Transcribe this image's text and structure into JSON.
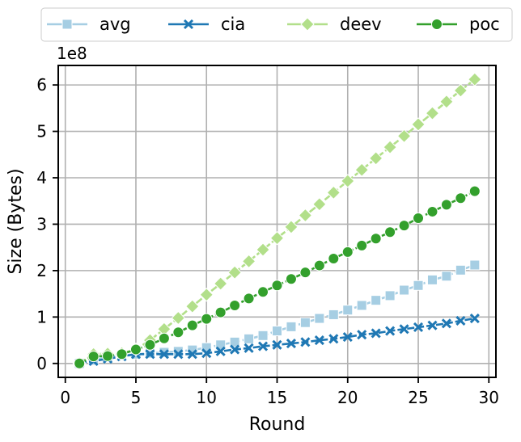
{
  "chart_data": {
    "type": "line",
    "xlabel": "Round",
    "ylabel": "Size (Bytes)",
    "y_multiplier_label": "1e8",
    "xlim": [
      -0.5,
      30.5
    ],
    "ylim": [
      -0.3,
      6.42
    ],
    "y_scale": 100000000,
    "x_ticks": [
      0,
      5,
      10,
      15,
      20,
      25,
      30
    ],
    "y_ticks": [
      0,
      1,
      2,
      3,
      4,
      5,
      6
    ],
    "grid": true,
    "legend_position": "top, outside plot, single row",
    "x": [
      1,
      2,
      3,
      4,
      5,
      6,
      7,
      8,
      9,
      10,
      11,
      12,
      13,
      14,
      15,
      16,
      17,
      18,
      19,
      20,
      21,
      22,
      23,
      24,
      25,
      26,
      27,
      28,
      29
    ],
    "series": [
      {
        "name": "avg",
        "color": "#a6cee3",
        "marker": "square",
        "values": [
          0.0,
          0.07,
          0.14,
          0.17,
          0.2,
          0.22,
          0.24,
          0.26,
          0.29,
          0.34,
          0.4,
          0.46,
          0.53,
          0.6,
          0.7,
          0.79,
          0.88,
          0.97,
          1.05,
          1.15,
          1.25,
          1.36,
          1.46,
          1.58,
          1.68,
          1.8,
          1.88,
          2.01,
          2.12
        ]
      },
      {
        "name": "cia",
        "color": "#1f78b4",
        "marker": "x",
        "values": [
          0.0,
          0.05,
          0.1,
          0.15,
          0.2,
          0.2,
          0.2,
          0.2,
          0.2,
          0.22,
          0.26,
          0.3,
          0.33,
          0.37,
          0.4,
          0.43,
          0.46,
          0.5,
          0.53,
          0.57,
          0.62,
          0.65,
          0.7,
          0.74,
          0.78,
          0.82,
          0.86,
          0.92,
          0.97
        ]
      },
      {
        "name": "deev",
        "color": "#b2df8a",
        "marker": "diamond",
        "values": [
          0.0,
          0.2,
          0.21,
          0.22,
          0.3,
          0.5,
          0.74,
          0.98,
          1.23,
          1.48,
          1.72,
          1.96,
          2.2,
          2.45,
          2.7,
          2.94,
          3.19,
          3.43,
          3.68,
          3.93,
          4.17,
          4.42,
          4.66,
          4.9,
          5.15,
          5.39,
          5.64,
          5.88,
          6.12
        ]
      },
      {
        "name": "poc",
        "color": "#33a02c",
        "marker": "circle",
        "values": [
          0.0,
          0.15,
          0.16,
          0.2,
          0.3,
          0.4,
          0.54,
          0.67,
          0.82,
          0.96,
          1.1,
          1.25,
          1.4,
          1.54,
          1.68,
          1.82,
          1.96,
          2.11,
          2.26,
          2.4,
          2.54,
          2.69,
          2.83,
          2.97,
          3.13,
          3.27,
          3.42,
          3.56,
          3.71
        ]
      }
    ]
  }
}
